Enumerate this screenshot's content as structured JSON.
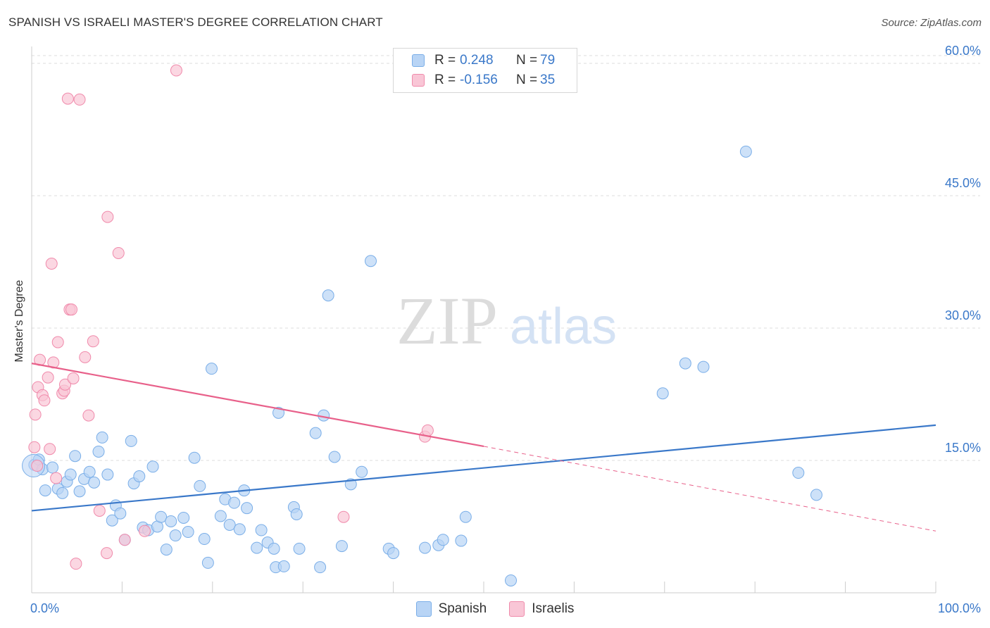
{
  "title": "SPANISH VS ISRAELI MASTER'S DEGREE CORRELATION CHART",
  "source": "Source: ZipAtlas.com",
  "watermark": {
    "zip": "ZIP",
    "atlas": "atlas"
  },
  "legend_top": {
    "rows": [
      {
        "r_label": "R =",
        "r_value": "0.248",
        "n_label": "N =",
        "n_value": "79"
      },
      {
        "r_label": "R =",
        "r_value": "-0.156",
        "n_label": "N =",
        "n_value": "35"
      }
    ]
  },
  "chart_data": {
    "type": "scatter",
    "title": "SPANISH VS ISRAELI MASTER'S DEGREE CORRELATION CHART",
    "xlabel": "",
    "ylabel": "Master's Degree",
    "xlim": [
      0,
      100
    ],
    "ylim": [
      0,
      62
    ],
    "x_tick_labels": [
      "0.0%",
      "100.0%"
    ],
    "y_ticks": [
      15,
      30,
      45,
      60
    ],
    "y_tick_labels": [
      "15.0%",
      "30.0%",
      "45.0%",
      "60.0%"
    ],
    "grid": true,
    "legend_position": "top-center",
    "colors": {
      "spanish": "#3a78c9",
      "spanish_fill": "#b8d4f5",
      "israelis": "#e8608a",
      "israelis_fill": "#f9c6d6",
      "grid": "#dddddd",
      "tick_label": "#3a78c9"
    },
    "series": [
      {
        "name": "Spanish",
        "r": 0.248,
        "n": 79,
        "trend": {
          "x": [
            0,
            100
          ],
          "y": [
            9.3,
            19.0
          ]
        },
        "points": [
          [
            0.3,
            14.5
          ],
          [
            0.8,
            15.1
          ],
          [
            1.2,
            14.0
          ],
          [
            1.5,
            11.6
          ],
          [
            2.3,
            14.2
          ],
          [
            2.9,
            11.8
          ],
          [
            3.4,
            11.3
          ],
          [
            3.9,
            12.6
          ],
          [
            4.3,
            13.4
          ],
          [
            4.8,
            15.5
          ],
          [
            5.3,
            11.5
          ],
          [
            5.8,
            12.9
          ],
          [
            6.4,
            13.7
          ],
          [
            6.9,
            12.5
          ],
          [
            7.4,
            16.0
          ],
          [
            7.8,
            17.6
          ],
          [
            8.4,
            13.4
          ],
          [
            8.9,
            8.2
          ],
          [
            9.3,
            9.9
          ],
          [
            9.8,
            9.0
          ],
          [
            10.3,
            6.0
          ],
          [
            11.0,
            17.2
          ],
          [
            11.3,
            12.4
          ],
          [
            11.9,
            13.2
          ],
          [
            12.3,
            7.4
          ],
          [
            12.9,
            7.1
          ],
          [
            13.4,
            14.3
          ],
          [
            13.9,
            7.5
          ],
          [
            14.3,
            8.6
          ],
          [
            14.9,
            4.9
          ],
          [
            15.4,
            8.1
          ],
          [
            15.9,
            6.5
          ],
          [
            16.8,
            8.5
          ],
          [
            17.3,
            6.9
          ],
          [
            18.0,
            15.3
          ],
          [
            18.6,
            12.1
          ],
          [
            19.1,
            6.1
          ],
          [
            19.5,
            3.4
          ],
          [
            19.9,
            25.4
          ],
          [
            20.9,
            8.7
          ],
          [
            21.4,
            10.6
          ],
          [
            21.9,
            7.7
          ],
          [
            22.4,
            10.2
          ],
          [
            23.0,
            7.2
          ],
          [
            23.5,
            11.6
          ],
          [
            23.8,
            9.6
          ],
          [
            24.9,
            5.1
          ],
          [
            25.4,
            7.1
          ],
          [
            26.1,
            5.7
          ],
          [
            26.8,
            5.0
          ],
          [
            27.0,
            2.9
          ],
          [
            27.3,
            20.4
          ],
          [
            27.9,
            3.0
          ],
          [
            29.0,
            9.7
          ],
          [
            29.3,
            8.9
          ],
          [
            29.6,
            5.0
          ],
          [
            31.4,
            18.1
          ],
          [
            31.9,
            2.9
          ],
          [
            32.3,
            20.1
          ],
          [
            32.8,
            33.7
          ],
          [
            33.5,
            15.4
          ],
          [
            34.3,
            5.3
          ],
          [
            35.3,
            12.3
          ],
          [
            36.5,
            13.7
          ],
          [
            37.5,
            37.6
          ],
          [
            39.5,
            5.0
          ],
          [
            40.0,
            4.5
          ],
          [
            43.5,
            5.1
          ],
          [
            45.0,
            5.4
          ],
          [
            45.5,
            6.0
          ],
          [
            47.5,
            5.9
          ],
          [
            48.0,
            8.6
          ],
          [
            53.0,
            1.4
          ],
          [
            69.8,
            22.6
          ],
          [
            72.3,
            26.0
          ],
          [
            74.3,
            25.6
          ],
          [
            79.0,
            50.0
          ],
          [
            84.8,
            13.6
          ],
          [
            86.8,
            11.1
          ]
        ]
      },
      {
        "name": "Israelis",
        "r": -0.156,
        "n": 35,
        "trend": {
          "x": [
            0,
            50
          ],
          "y": [
            26.0,
            16.6
          ]
        },
        "trend_dashed": {
          "x": [
            50,
            100
          ],
          "y": [
            16.6,
            7.0
          ]
        },
        "points": [
          [
            0.3,
            16.5
          ],
          [
            0.4,
            20.2
          ],
          [
            0.7,
            23.3
          ],
          [
            0.9,
            26.4
          ],
          [
            1.2,
            22.4
          ],
          [
            1.4,
            21.8
          ],
          [
            1.8,
            24.4
          ],
          [
            2.0,
            16.3
          ],
          [
            2.2,
            37.3
          ],
          [
            2.4,
            26.1
          ],
          [
            2.7,
            13.0
          ],
          [
            2.9,
            28.4
          ],
          [
            3.4,
            22.6
          ],
          [
            3.6,
            22.9
          ],
          [
            3.7,
            23.6
          ],
          [
            4.0,
            56.0
          ],
          [
            4.2,
            32.1
          ],
          [
            4.4,
            32.1
          ],
          [
            4.6,
            24.3
          ],
          [
            4.9,
            3.3
          ],
          [
            5.3,
            55.9
          ],
          [
            5.9,
            26.7
          ],
          [
            6.3,
            20.1
          ],
          [
            6.8,
            28.5
          ],
          [
            7.5,
            9.3
          ],
          [
            8.3,
            4.5
          ],
          [
            8.4,
            42.6
          ],
          [
            9.6,
            38.5
          ],
          [
            10.3,
            6.0
          ],
          [
            12.5,
            7.0
          ],
          [
            16.0,
            59.2
          ],
          [
            34.5,
            8.6
          ],
          [
            43.5,
            17.7
          ],
          [
            43.8,
            18.4
          ],
          [
            0.6,
            14.4
          ]
        ]
      }
    ]
  }
}
